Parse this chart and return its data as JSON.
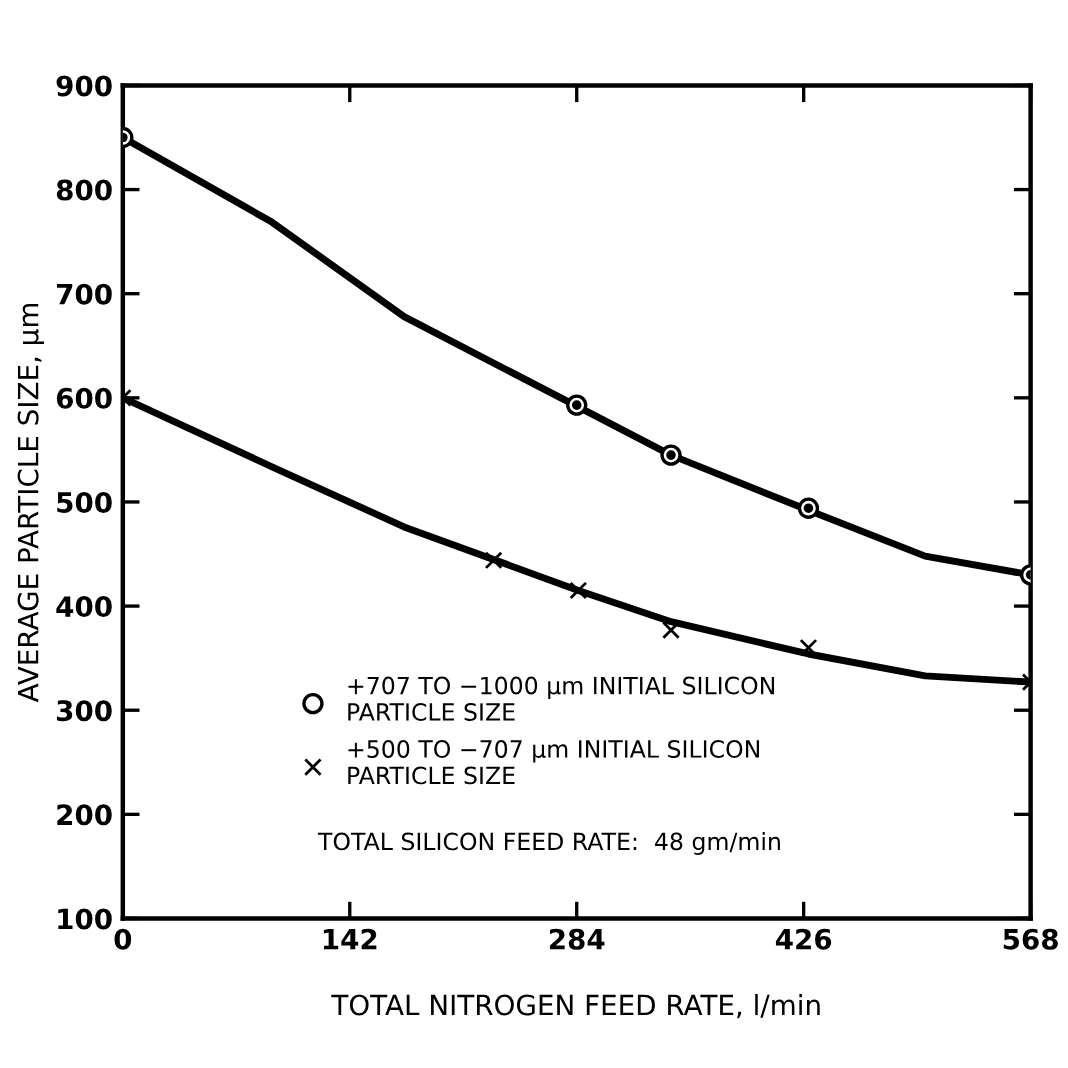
{
  "chart_data": {
    "type": "scatter",
    "xlabel": "TOTAL NITROGEN FEED RATE, l/min",
    "ylabel": "AVERAGE PARTICLE SIZE, µm",
    "xlim": [
      0,
      568
    ],
    "xticks": [
      0,
      142,
      284,
      426,
      568
    ],
    "ylim": [
      100,
      900
    ],
    "yticks": [
      100,
      200,
      300,
      400,
      500,
      600,
      700,
      800,
      900
    ],
    "grid": false,
    "legend": "bottom left",
    "series": [
      {
        "name": "+707 TO −1000 µm INITIAL SILICON\nPARTICLE SIZE",
        "color": "#000000",
        "marker": "circle",
        "x": [
          0,
          284,
          343,
          429,
          568
        ],
        "values": [
          850,
          593,
          545,
          494,
          430
        ]
      },
      {
        "name": "+500 TO −707 µm INITIAL SILICON\nPARTICLE SIZE",
        "color": "#000000",
        "marker": "cross",
        "x": [
          0,
          232,
          285,
          343,
          429,
          568
        ],
        "values": [
          600,
          444,
          415,
          377,
          360,
          327
        ]
      },
      {
        "type": "line",
        "color": "#000000",
        "marker": "none",
        "x": [
          0,
          93,
          176,
          284,
          343,
          429,
          502,
          568
        ],
        "values": [
          850,
          769,
          678,
          592,
          545,
          492,
          448,
          430
        ]
      },
      {
        "type": "line",
        "color": "#000000",
        "marker": "none",
        "x": [
          0,
          93,
          176,
          285,
          343,
          429,
          502,
          568
        ],
        "values": [
          600,
          534,
          476,
          415,
          385,
          354,
          333,
          327
        ]
      }
    ],
    "annotations": [
      "TOTAL SILICON FEED RATE:  48 gm/min"
    ]
  }
}
